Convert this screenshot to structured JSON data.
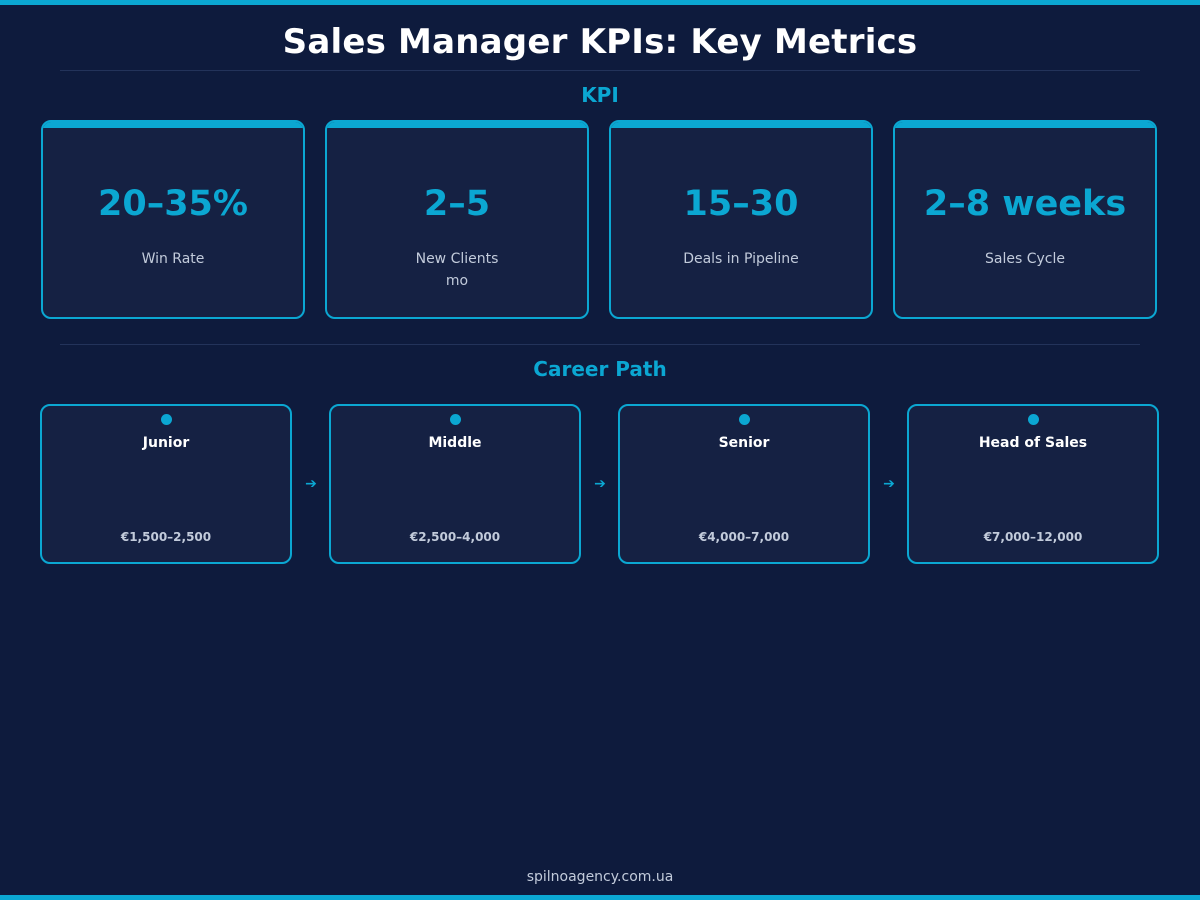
{
  "page": {
    "title": "Sales Manager KPIs: Key Metrics",
    "footer": "spilnoagency.com.ua"
  },
  "kpi_section": {
    "heading": "KPI",
    "cards": [
      {
        "value": "20–35%",
        "label": "Win Rate"
      },
      {
        "value": "2–5",
        "label": "New Clients\nmo"
      },
      {
        "value": "15–30",
        "label": "Deals in Pipeline"
      },
      {
        "value": "2–8 weeks",
        "label": "Sales Cycle"
      }
    ]
  },
  "career_section": {
    "heading": "Career Path",
    "steps": [
      {
        "title": "Junior",
        "salary": "€1,500–2,500"
      },
      {
        "title": "Middle",
        "salary": "€2,500–4,000"
      },
      {
        "title": "Senior",
        "salary": "€4,000–7,000"
      },
      {
        "title": "Head of Sales",
        "salary": "€7,000–12,000"
      }
    ],
    "arrow_icon": "arrow-right-icon",
    "dot_icon": "dot-icon"
  },
  "colors": {
    "background": "#0e1b3d",
    "card": "#152143",
    "accent": "#0ba7d2",
    "text": "#ffffff",
    "muted_text": "#c2cbdb"
  }
}
